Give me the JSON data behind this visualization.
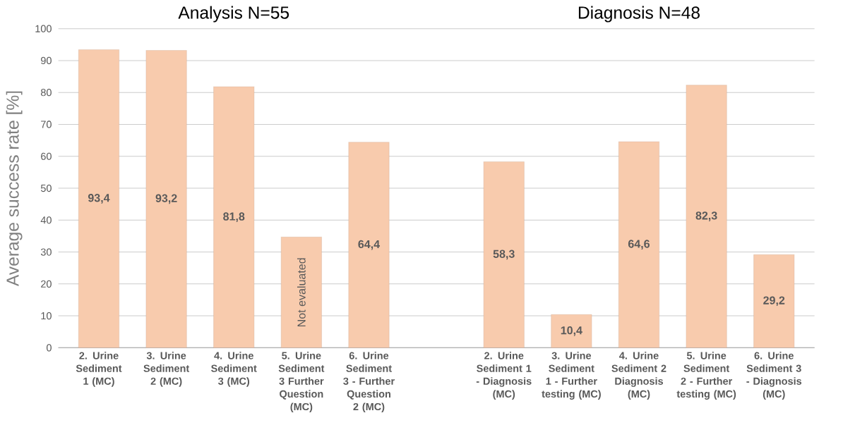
{
  "chart_data": {
    "type": "bar",
    "ylabel": "Average success rate [%]",
    "annotations": [
      "Analysis N=55",
      "Diagnosis N=48"
    ],
    "categories": [
      "2. Urine Sediment 1 (MC)",
      "3. Urine Sediment 2 (MC)",
      "4. Urine Sediment 3 (MC)",
      "5. Urine Sediment 3 Further Question (MC)",
      "6. Urine Sediment 3 - Further Question 2 (MC)",
      null,
      "2. Urine Sediment 1 - Diagnosis (MC)",
      "3. Urine Sediment 1 - Further testing (MC)",
      "4. Urine Sediment 2 Diagnosis (MC)",
      "5. Urine Sediment 2 - Further testing (MC)",
      "6. Urine Sediment 3 - Diagnosis (MC)"
    ],
    "values": [
      93.4,
      93.2,
      81.8,
      34.7,
      64.4,
      null,
      58.3,
      10.4,
      64.6,
      82.3,
      29.2
    ],
    "value_labels": [
      "93,4",
      "93,2",
      "81,8",
      "Not evaluated",
      "64,4",
      null,
      "58,3",
      "10,4",
      "64,6",
      "82,3",
      "29,2"
    ],
    "color": "#f8cbad",
    "ylim": [
      0,
      100
    ],
    "yticks": [
      0,
      10,
      20,
      30,
      40,
      50,
      60,
      70,
      80,
      90,
      100
    ],
    "grid": "y"
  }
}
